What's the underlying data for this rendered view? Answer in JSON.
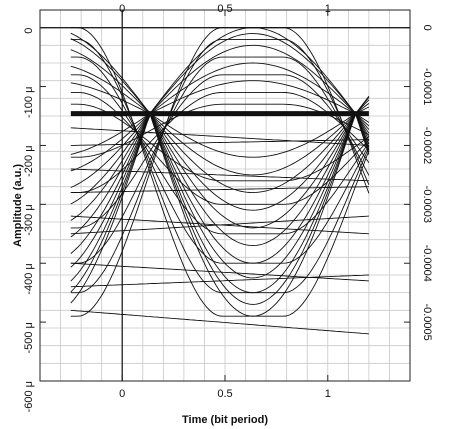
{
  "chart_data": {
    "type": "line",
    "title": "",
    "xlabel": "Time (bit period)",
    "ylabel": "Amplitude (a.u.)",
    "xlim": [
      -0.4,
      1.4
    ],
    "ylim": [
      -0.0006,
      3e-05
    ],
    "grid": true,
    "x_ticks": [
      0,
      0.5,
      1
    ],
    "x_tick_labels": [
      "0",
      "0.5",
      "1"
    ],
    "top_tick_labels": [
      "0",
      "0.5",
      "1"
    ],
    "left_ticks": [
      0,
      -0.0001,
      -0.0002,
      -0.0003,
      -0.0004,
      -0.0005,
      -0.0006
    ],
    "left_tick_labels": [
      "0",
      "-100 μ",
      "-200 μ",
      "-300 μ",
      "-400 μ",
      "-500 μ",
      "-600 μ"
    ],
    "right_ticks": [
      0,
      -0.0001,
      -0.0002,
      -0.0003,
      -0.0004,
      -0.0005
    ],
    "right_tick_labels": [
      "0",
      "-0.0001",
      "-0.0002",
      "-0.0003",
      "-0.0004",
      "-0.0005"
    ],
    "eye_diagram": {
      "t_start": -0.25,
      "t_end": 1.2,
      "crossings": [
        0.135,
        1.135
      ],
      "bit_center": 0.635,
      "high_level": 0.0,
      "mid_level": -0.000146,
      "low_level": -0.00049,
      "traces": [
        {
          "kind": "eye_bottom",
          "level": -0.00049
        },
        {
          "kind": "eye_bottom",
          "level": -0.00047
        },
        {
          "kind": "eye_bottom",
          "level": -0.00045
        },
        {
          "kind": "eye_bottom",
          "level": -0.000425
        },
        {
          "kind": "eye_bottom",
          "level": -0.0004
        },
        {
          "kind": "eye_bottom",
          "level": -0.00037
        },
        {
          "kind": "eye_bottom",
          "level": -0.00034
        },
        {
          "kind": "eye_bottom",
          "level": -0.00031
        },
        {
          "kind": "eye_bottom",
          "level": -0.00028
        },
        {
          "kind": "eye_bottom",
          "level": -0.00025
        },
        {
          "kind": "eye_bottom",
          "level": -0.00022
        },
        {
          "kind": "eye_top",
          "level": 0.0
        },
        {
          "kind": "eye_top",
          "level": -1e-05
        },
        {
          "kind": "eye_top",
          "level": -3e-05
        },
        {
          "kind": "eye_top",
          "level": -6e-05
        },
        {
          "kind": "eye_top",
          "level": -9e-05
        },
        {
          "kind": "rising",
          "start": -0.00049,
          "end": 0.0
        },
        {
          "kind": "rising",
          "start": -0.00045,
          "end": -2e-05
        },
        {
          "kind": "rising",
          "start": -0.0004,
          "end": -5e-05
        },
        {
          "kind": "rising",
          "start": -0.00034,
          "end": -8e-05
        },
        {
          "kind": "rising",
          "start": -0.00028,
          "end": -0.00011
        },
        {
          "kind": "rising",
          "start": -0.00022,
          "end": -0.00013
        },
        {
          "kind": "falling",
          "start": 0.0,
          "end": -0.00049
        },
        {
          "kind": "falling",
          "start": -2e-05,
          "end": -0.00045
        },
        {
          "kind": "falling",
          "start": -5e-05,
          "end": -0.0004
        },
        {
          "kind": "falling",
          "start": -8e-05,
          "end": -0.00035
        },
        {
          "kind": "falling",
          "start": -0.00011,
          "end": -0.0003
        },
        {
          "kind": "falling",
          "start": -0.00013,
          "end": -0.00026
        },
        {
          "kind": "drift",
          "start": -0.00048,
          "end": -0.00052
        },
        {
          "kind": "drift",
          "start": -0.00044,
          "end": -0.00042
        },
        {
          "kind": "drift",
          "start": -0.0004,
          "end": -0.00043
        },
        {
          "kind": "drift",
          "start": -0.00035,
          "end": -0.00032
        },
        {
          "kind": "drift",
          "start": -0.00032,
          "end": -0.00035
        },
        {
          "kind": "drift",
          "start": -0.00028,
          "end": -0.00027
        },
        {
          "kind": "drift",
          "start": -0.00024,
          "end": -0.00026
        },
        {
          "kind": "drift",
          "start": -0.0002,
          "end": -0.00019
        },
        {
          "kind": "drift",
          "start": -0.00017,
          "end": -0.0002
        }
      ]
    }
  }
}
